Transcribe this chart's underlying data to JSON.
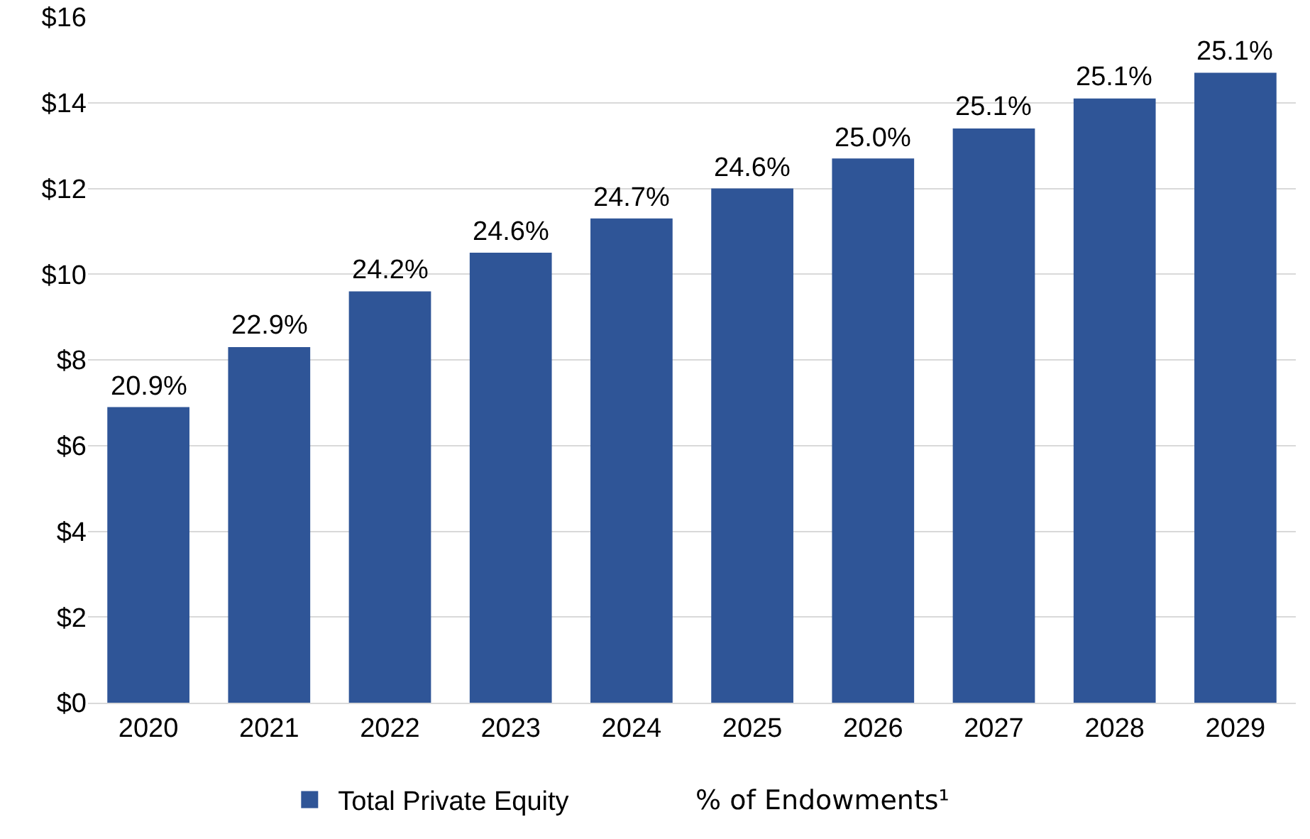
{
  "chart_data": {
    "type": "bar",
    "categories": [
      "2020",
      "2021",
      "2022",
      "2023",
      "2024",
      "2025",
      "2026",
      "2027",
      "2028",
      "2029"
    ],
    "series": [
      {
        "name": "Total Private Equity",
        "color": "#2f5597",
        "values": [
          6.9,
          8.3,
          9.6,
          10.5,
          11.3,
          12.0,
          12.7,
          13.4,
          14.1,
          14.7
        ]
      }
    ],
    "ylim": [
      0,
      16
    ],
    "yticks": [
      {
        "value": 0,
        "label": "$0"
      },
      {
        "value": 2,
        "label": "$2"
      },
      {
        "value": 4,
        "label": "$4"
      },
      {
        "value": 6,
        "label": "$6"
      },
      {
        "value": 8,
        "label": "$8"
      },
      {
        "value": 10,
        "label": "$10"
      },
      {
        "value": 12,
        "label": "$12"
      },
      {
        "value": 14,
        "label": "$14"
      },
      {
        "value": 16,
        "label": "$16"
      }
    ],
    "grid": "y",
    "legend": "bottom",
    "annotations": [
      "% of Endowments¹",
      {
        "text": "20.9%",
        "x": "2020",
        "y": 6.9
      },
      {
        "text": "22.9%",
        "x": "2021",
        "y": 8.3
      },
      {
        "text": "24.2%",
        "x": "2022",
        "y": 9.6
      },
      {
        "text": "24.6%",
        "x": "2023",
        "y": 10.5
      },
      {
        "text": "24.7%",
        "x": "2024",
        "y": 11.3
      },
      {
        "text": "24.6%",
        "x": "2025",
        "y": 12.0
      },
      {
        "text": "25.0%",
        "x": "2026",
        "y": 12.7
      },
      {
        "text": "25.1%",
        "x": "2027",
        "y": 13.4
      },
      {
        "text": "25.1%",
        "x": "2028",
        "y": 14.1
      },
      {
        "text": "25.1%",
        "x": "2029",
        "y": 14.7
      }
    ]
  }
}
